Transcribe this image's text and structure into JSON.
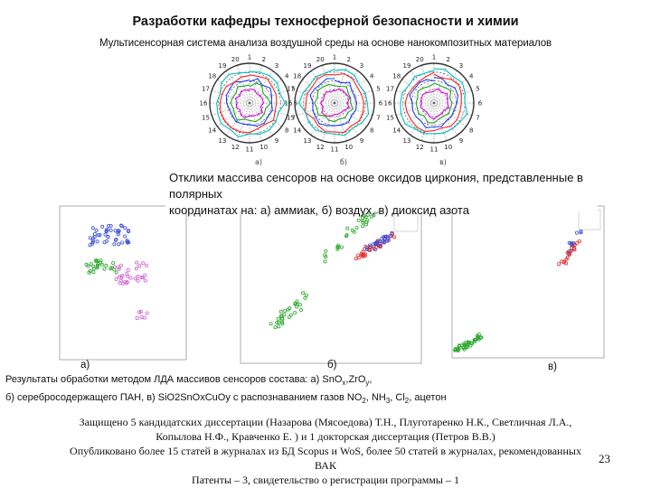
{
  "title": "Разработки кафедры техносферной безопасности и химии",
  "subtitle": "Мультисенсорная система анализа воздушной среды на основе нанокомпозитных материалов",
  "polar_panels": [
    {
      "letter": "а)",
      "colors": [
        "#e000e0",
        "#20a020",
        "#2040ff",
        "#ff2020",
        "#00c0c0"
      ]
    },
    {
      "letter": "б)",
      "colors": [
        "#e000e0",
        "#20a020",
        "#2040ff",
        "#ff2020",
        "#00c0c0"
      ]
    },
    {
      "letter": "в)",
      "colors": [
        "#e000e0",
        "#20a020",
        "#2040ff",
        "#ff2020",
        "#00c0c0"
      ]
    }
  ],
  "polar_caption_line1": "Отклики массива сенсоров на основе оксидов циркония, представленные в полярных",
  "polar_caption_line2": "координатах на: а) аммиак, б) воздух, в) диоксид азота",
  "scatter_labels": {
    "a": "а)",
    "b": "б)",
    "c": "в)"
  },
  "lda_caption": {
    "p1": "Результаты обработки методом ЛДА массивов сенсоров состава: а) SnO",
    "s1": "x",
    "p2": ",ZrO",
    "s2": "y",
    "p3": ",",
    "p4": "б) серебросодержащего ПАН, в) SiO2SnOxCuOy с распознаванием газов NO",
    "s3": "2",
    "p5": ", NH",
    "s4": "3",
    "p6": ", Cl",
    "s5": "2",
    "p7": ", ацетон"
  },
  "footer": {
    "line1": "Защищено 5 кандидатских диссертации (Назарова (Мясоедова) Т.Н., Плуготаренко Н.К., Светличная Л.А.,",
    "line2": "Копылова Н.Ф., Кравченко Е. ) и 1 докторская диссертация (Петров В.В.)",
    "line3": "Опубликовано более 15 статей в журналах из БД Scopus и WoS, более 50 статей в журналах, рекомендованных",
    "line4": "ВАК",
    "line5": "Патенты – 3, свидетельство о регистрации программы – 1"
  },
  "page_number": "23",
  "series_colors": {
    "blue": "#3b4fd8",
    "green": "#2ea82e",
    "red": "#e03030",
    "pink": "#d060d0",
    "cyan": "#40a8e0"
  }
}
